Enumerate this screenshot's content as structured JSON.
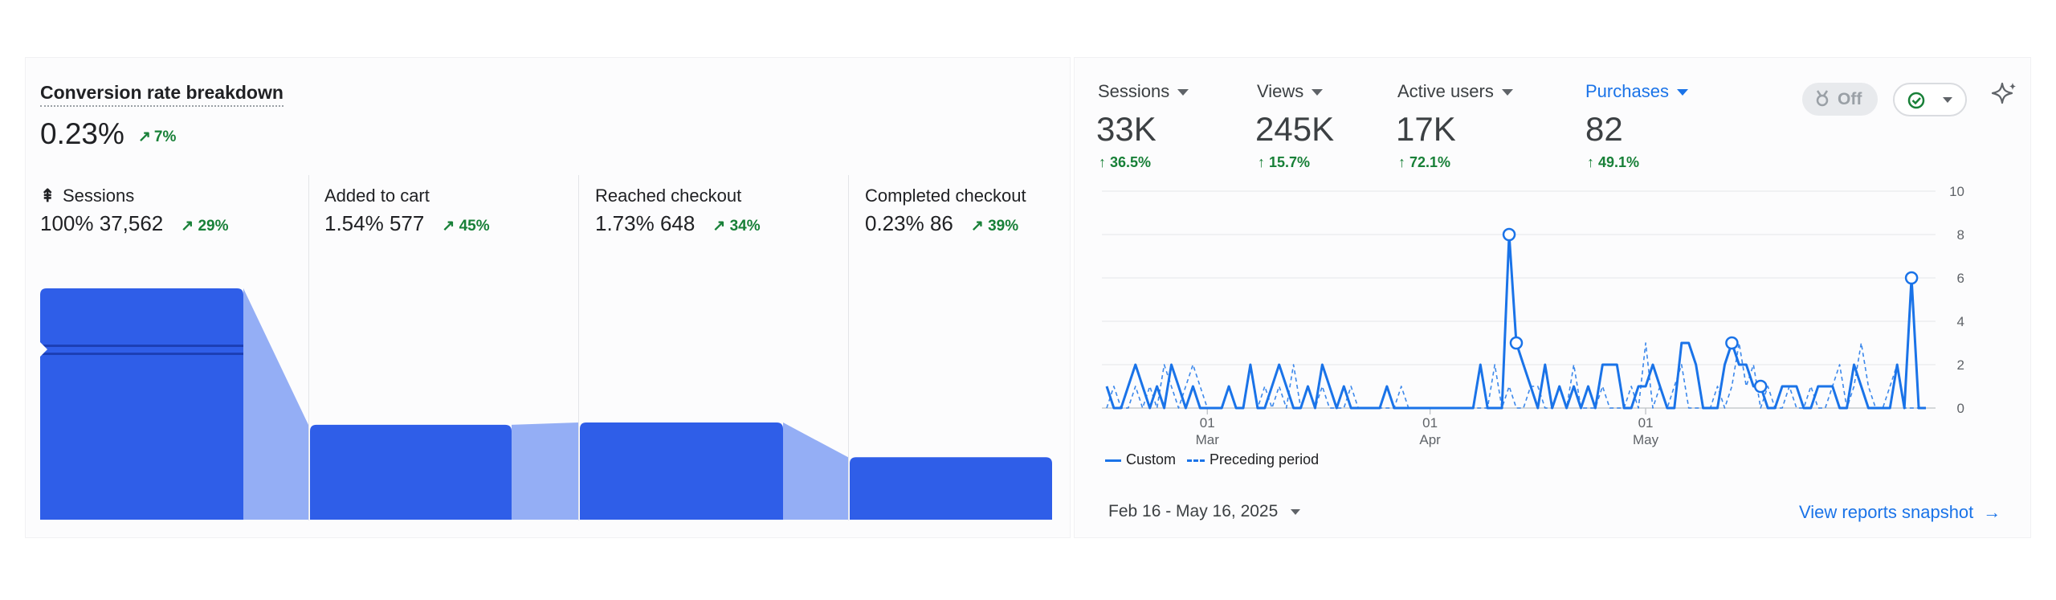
{
  "funnel": {
    "title": "Conversion rate breakdown",
    "rate": "0.23%",
    "rate_delta": "7%",
    "steps": [
      {
        "label": "Sessions",
        "pct": "100%",
        "count": "37,562",
        "delta": "29%",
        "bar": 1.0
      },
      {
        "label": "Added to cart",
        "pct": "1.54%",
        "count": "577",
        "delta": "45%",
        "bar": 0.41
      },
      {
        "label": "Reached checkout",
        "pct": "1.73%",
        "count": "648",
        "delta": "34%",
        "bar": 0.42
      },
      {
        "label": "Completed checkout",
        "pct": "0.23%",
        "count": "86",
        "delta": "39%",
        "bar": 0.27
      }
    ],
    "bar_color": "#2f5ee8",
    "transition_color": "#94aef5"
  },
  "overview": {
    "metrics": [
      {
        "label": "Sessions",
        "value": "33K",
        "delta": "36.5%"
      },
      {
        "label": "Views",
        "value": "245K",
        "delta": "15.7%"
      },
      {
        "label": "Active users",
        "value": "17K",
        "delta": "72.1%"
      },
      {
        "label": "Purchases",
        "value": "82",
        "delta": "49.1%"
      }
    ],
    "toggle_label": "Off",
    "legend_custom": "Custom",
    "legend_preceding": "Preceding period",
    "date_range": "Feb 16 - May 16, 2025",
    "view_link": "View reports snapshot",
    "accent": "#1a73e8",
    "positive": "#188038"
  },
  "chart_data": {
    "type": "line",
    "title": "",
    "xlabel": "",
    "ylabel": "",
    "ylim": [
      0,
      10
    ],
    "yticks": [
      "10",
      "8",
      "6",
      "4",
      "2",
      "0"
    ],
    "xticks": [
      {
        "index": 14,
        "day": "01",
        "month": "Mar"
      },
      {
        "index": 45,
        "day": "01",
        "month": "Apr"
      },
      {
        "index": 75,
        "day": "01",
        "month": "May"
      }
    ],
    "series": [
      {
        "name": "Custom",
        "style": "solid",
        "values": [
          1,
          0,
          0,
          1,
          2,
          1,
          0,
          1,
          0,
          2,
          1,
          0,
          1,
          0,
          0,
          0,
          0,
          1,
          0,
          0,
          2,
          0,
          0,
          1,
          2,
          1,
          0,
          0,
          1,
          0,
          2,
          1,
          0,
          1,
          0,
          0,
          0,
          0,
          0,
          1,
          0,
          0,
          0,
          0,
          0,
          0,
          0,
          0,
          0,
          0,
          0,
          0,
          2,
          0,
          0,
          0,
          8,
          3,
          2,
          1,
          0,
          2,
          0,
          1,
          0,
          1,
          0,
          1,
          0,
          2,
          2,
          2,
          0,
          0,
          1,
          1,
          2,
          1,
          0,
          0,
          3,
          3,
          2,
          0,
          0,
          0,
          2,
          3,
          2,
          2,
          1,
          1,
          0,
          0,
          1,
          1,
          1,
          0,
          0,
          1,
          1,
          1,
          0,
          0,
          2,
          1,
          0,
          0,
          0,
          0,
          2,
          0,
          6,
          0,
          0
        ]
      },
      {
        "name": "Preceding period",
        "style": "dashed",
        "values": [
          0,
          1,
          0,
          0,
          1,
          0,
          1,
          0,
          2,
          1,
          0,
          1,
          2,
          1,
          0,
          0,
          0,
          1,
          0,
          0,
          2,
          0,
          1,
          0,
          1,
          0,
          2,
          0,
          1,
          0,
          1,
          0,
          0,
          0,
          1,
          0,
          0,
          0,
          0,
          0,
          0,
          1,
          0,
          0,
          0,
          0,
          0,
          0,
          0,
          0,
          0,
          0,
          0,
          0,
          2,
          0,
          1,
          0,
          0,
          1,
          1,
          0,
          0,
          1,
          0,
          2,
          0,
          0,
          0,
          1,
          0,
          0,
          0,
          1,
          0,
          3,
          0,
          1,
          0,
          1,
          2,
          0,
          0,
          0,
          0,
          1,
          0,
          1,
          3,
          1,
          2,
          0,
          1,
          0,
          0,
          1,
          0,
          0,
          1,
          0,
          0,
          1,
          2,
          0,
          1,
          3,
          1,
          0,
          0,
          1,
          2,
          0,
          0,
          0,
          0
        ]
      }
    ],
    "highlighted_points": [
      56,
      57,
      87,
      91,
      112
    ]
  }
}
